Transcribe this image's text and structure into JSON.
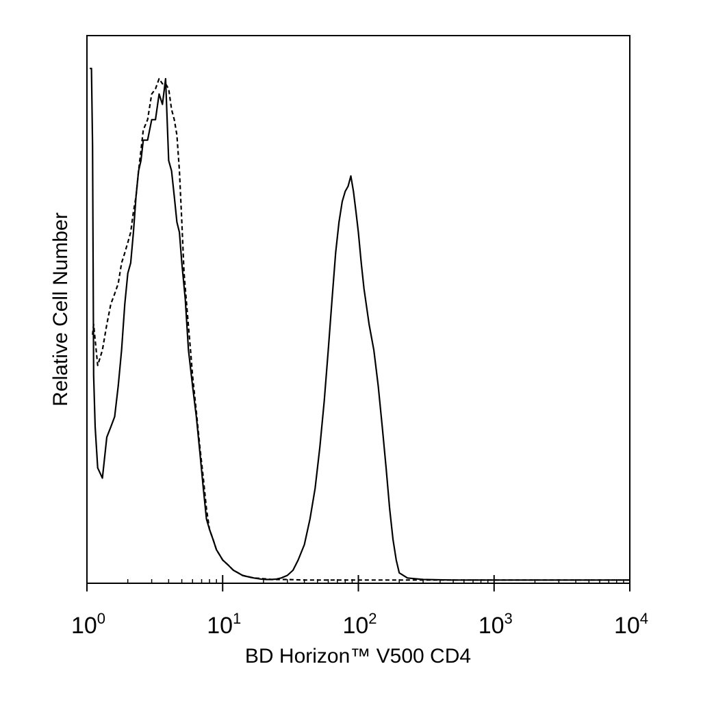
{
  "chart_data": {
    "type": "line",
    "title": "",
    "xlabel": "BD Horizon™ V500 CD4",
    "ylabel": "Relative Cell Number",
    "x_scale": "log",
    "xlim": [
      1,
      10000
    ],
    "ylim": [
      0,
      100
    ],
    "grid": false,
    "legend": "none",
    "x_ticks": [
      {
        "value": 1,
        "base": "10",
        "exp": "0"
      },
      {
        "value": 10,
        "base": "10",
        "exp": "1"
      },
      {
        "value": 100,
        "base": "10",
        "exp": "2"
      },
      {
        "value": 1000,
        "base": "10",
        "exp": "3"
      },
      {
        "value": 10000,
        "base": "10",
        "exp": "4"
      }
    ],
    "series": [
      {
        "style": "solid",
        "color": "#000000",
        "x": [
          1.05,
          1.08,
          1.1,
          1.12,
          1.15,
          1.2,
          1.3,
          1.4,
          1.5,
          1.6,
          1.7,
          1.8,
          1.9,
          2.0,
          2.1,
          2.2,
          2.3,
          2.4,
          2.5,
          2.6,
          2.8,
          3.0,
          3.2,
          3.4,
          3.6,
          3.8,
          4.0,
          4.2,
          4.4,
          4.6,
          4.8,
          5.0,
          5.3,
          5.6,
          6.0,
          6.4,
          6.8,
          7.2,
          7.6,
          8.0,
          8.5,
          9.0,
          9.5,
          10,
          11,
          12,
          13,
          14,
          15,
          17,
          19,
          21,
          23,
          25,
          27,
          30,
          33,
          36,
          40,
          44,
          48,
          52,
          56,
          60,
          64,
          68,
          72,
          76,
          80,
          84,
          88,
          92,
          96,
          100,
          105,
          110,
          120,
          130,
          140,
          150,
          160,
          170,
          180,
          190,
          200,
          230,
          300,
          500,
          1000,
          3000,
          10000
        ],
        "y": [
          100,
          100,
          85,
          40,
          30,
          22,
          20,
          28,
          30,
          32,
          38,
          45,
          54,
          60,
          62,
          68,
          75,
          80,
          82,
          86,
          86,
          90,
          90,
          95,
          93,
          98,
          82,
          80,
          75,
          70,
          68,
          62,
          55,
          45,
          38,
          32,
          25,
          18,
          12,
          10,
          8,
          6,
          5,
          4,
          3,
          2,
          1.5,
          1,
          0.8,
          0.5,
          0.3,
          0.2,
          0.2,
          0.3,
          0.5,
          1,
          2,
          4,
          7,
          12,
          18,
          26,
          35,
          45,
          55,
          64,
          70,
          74,
          76,
          77,
          79,
          76,
          72,
          68,
          62,
          57,
          50,
          45,
          38,
          30,
          22,
          14,
          8,
          4,
          1.5,
          0.5,
          0.2,
          0.1,
          0.1,
          0.1,
          0.1
        ]
      },
      {
        "style": "dashed",
        "color": "#000000",
        "x": [
          1.1,
          1.12,
          1.2,
          1.3,
          1.4,
          1.5,
          1.6,
          1.7,
          1.8,
          1.9,
          2.0,
          2.1,
          2.2,
          2.3,
          2.4,
          2.5,
          2.6,
          2.8,
          3.0,
          3.2,
          3.4,
          3.6,
          3.8,
          4.0,
          4.2,
          4.4,
          4.6,
          4.8,
          5.0,
          5.2,
          5.5,
          5.8,
          6.0,
          6.4,
          6.8,
          7.2,
          7.6,
          8.0,
          8.5,
          9.0,
          9.5,
          10,
          11,
          12,
          13,
          14,
          15,
          17,
          19,
          21,
          23,
          25,
          30,
          40,
          60,
          100,
          200,
          1000,
          10000
        ],
        "y": [
          48,
          50,
          42,
          45,
          50,
          54,
          56,
          58,
          62,
          64,
          66,
          68,
          72,
          75,
          80,
          84,
          88,
          90,
          95,
          96,
          98,
          97,
          97,
          96,
          92,
          90,
          87,
          80,
          70,
          60,
          52,
          45,
          40,
          33,
          26,
          20,
          14,
          10,
          8,
          6,
          5,
          4,
          3,
          2,
          1.5,
          1,
          0.8,
          0.5,
          0.4,
          0.3,
          0.2,
          0.2,
          0.2,
          0.1,
          0.1,
          0.1,
          0.1,
          0.1,
          0.1
        ]
      }
    ]
  }
}
